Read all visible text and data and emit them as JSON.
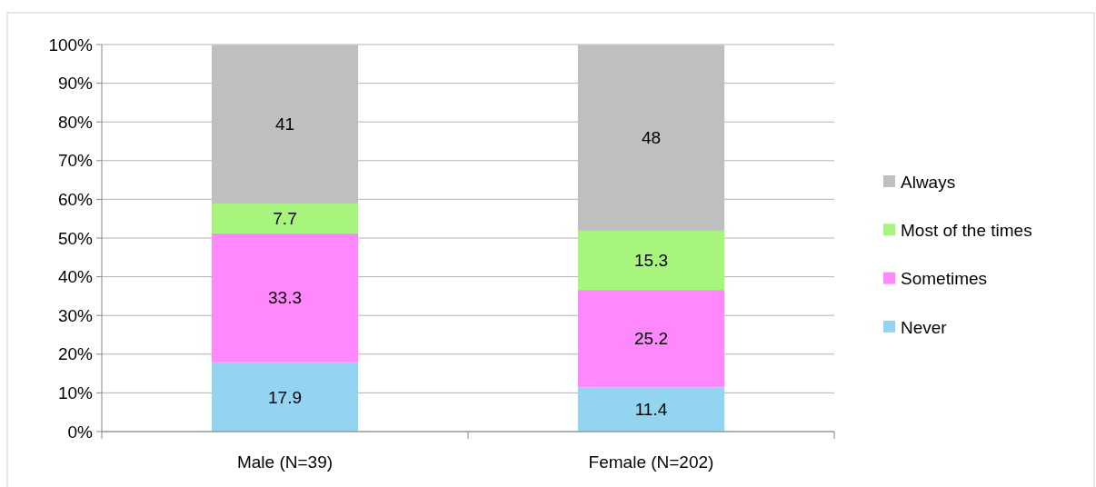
{
  "chart_data": {
    "type": "bar",
    "stacked": true,
    "categories": [
      "Male (N=39)",
      "Female (N=202)"
    ],
    "series": [
      {
        "name": "Never",
        "color": "#93d4f0",
        "values": [
          17.9,
          11.4
        ]
      },
      {
        "name": "Sometimes",
        "color": "#ff88ff",
        "values": [
          33.3,
          25.2
        ]
      },
      {
        "name": "Most of the times",
        "color": "#a7f57d",
        "values": [
          7.7,
          15.3
        ]
      },
      {
        "name": "Always",
        "color": "#bfbfbf",
        "values": [
          41,
          48
        ]
      }
    ],
    "ylim": [
      0,
      100
    ],
    "yticks": [
      {
        "value": 0,
        "label": "0%"
      },
      {
        "value": 10,
        "label": "10%"
      },
      {
        "value": 20,
        "label": "20%"
      },
      {
        "value": 30,
        "label": "30%"
      },
      {
        "value": 40,
        "label": "40%"
      },
      {
        "value": 50,
        "label": "50%"
      },
      {
        "value": 60,
        "label": "60%"
      },
      {
        "value": 70,
        "label": "70%"
      },
      {
        "value": 80,
        "label": "80%"
      },
      {
        "value": 90,
        "label": "90%"
      },
      {
        "value": 100,
        "label": "100%"
      }
    ],
    "grid": "y",
    "legend": "right",
    "data_labels": true
  }
}
